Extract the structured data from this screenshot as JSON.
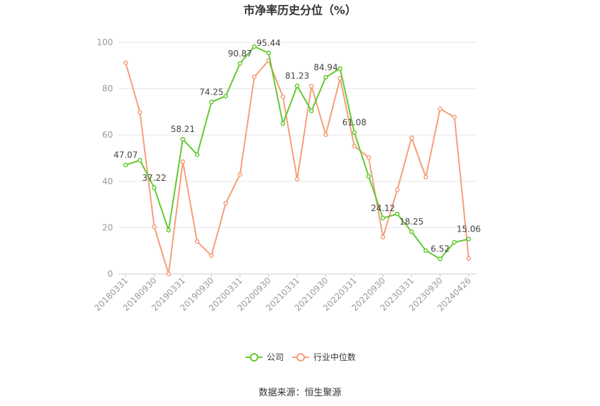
{
  "source": "数据来源：恒生聚源",
  "chart_data": {
    "type": "line",
    "title": "市净率历史分位（%）",
    "categories": [
      "20180331",
      "",
      "20180930",
      "",
      "20190331",
      "",
      "20190930",
      "",
      "20200331",
      "",
      "20200930",
      "",
      "20210331",
      "",
      "20210930",
      "",
      "20220331",
      "",
      "20220930",
      "",
      "20230331",
      "",
      "20230930",
      "",
      "20240426"
    ],
    "ylim": [
      0,
      100
    ],
    "y_ticks": [
      0,
      20,
      40,
      60,
      80,
      100
    ],
    "grid": true,
    "legend_position": "bottom",
    "series": [
      {
        "name": "公司",
        "color": "#62c932",
        "values": [
          47.07,
          49.1,
          37.22,
          18.9,
          58.21,
          51.5,
          74.25,
          76.8,
          90.87,
          98.2,
          95.44,
          64.9,
          81.23,
          70.4,
          84.94,
          88.7,
          61.08,
          42.1,
          24.12,
          25.9,
          18.25,
          10.1,
          6.52,
          13.7,
          15.06
        ],
        "data_labels": [
          "47.07",
          null,
          "37.22",
          null,
          "58.21",
          null,
          "74.25",
          null,
          "90.87",
          null,
          "95.44",
          null,
          "81.23",
          null,
          "84.94",
          null,
          "61.08",
          null,
          "24.12",
          null,
          "18.25",
          null,
          "6.52",
          null,
          "15.06"
        ]
      },
      {
        "name": "行业中位数",
        "color": "#f59e78",
        "values": [
          91.2,
          69.8,
          20.4,
          0,
          48.5,
          14.0,
          7.9,
          30.5,
          43.0,
          85.1,
          92.1,
          76.5,
          40.9,
          81.1,
          60.1,
          84.5,
          55.2,
          50.3,
          15.9,
          36.3,
          58.8,
          41.8,
          71.3,
          67.7,
          6.7
        ]
      }
    ]
  }
}
